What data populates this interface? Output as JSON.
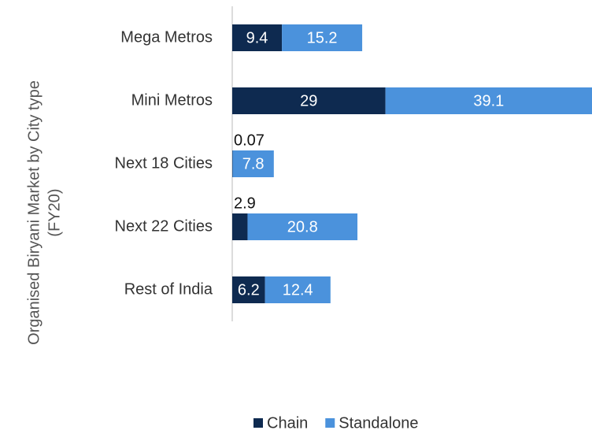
{
  "chart_data": {
    "type": "stacked_barh",
    "y_label": [
      "Organised Biryani Market by City type",
      "(FY20)"
    ],
    "categories": [
      "Mega Metros",
      "Mini Metros",
      "Next 18 Cities",
      "Next 22 Cities",
      "Rest of India"
    ],
    "series": [
      {
        "name": "Chain",
        "color": "#0e2a50",
        "values": [
          9.4,
          29,
          0.07,
          2.9,
          6.2
        ]
      },
      {
        "name": "Standalone",
        "color": "#4b92dc",
        "values": [
          15.2,
          39.1,
          7.8,
          20.8,
          12.4
        ]
      }
    ],
    "legend": "bottom"
  }
}
